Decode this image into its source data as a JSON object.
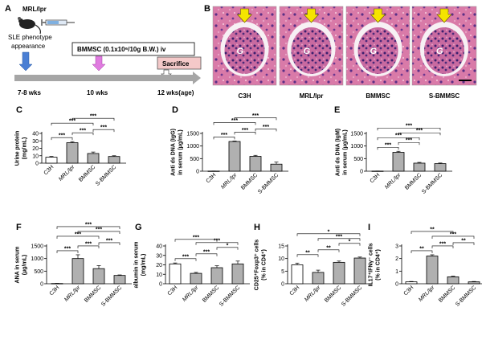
{
  "panel_a": {
    "label": "A",
    "mouse": "MRL/lpr",
    "phenotype": "SLE phenotype appearance",
    "treatment": "BMMSC (0.1x10⁶/10g B.W.) iv",
    "sacrifice": "Sacrifice",
    "t1": "7-8 wks",
    "t2": "10 wks",
    "t3": "12 wks(age)",
    "colors": {
      "arrow1": "#4a7fd4",
      "arrow2": "#e07be0",
      "sacrifice_fill": "#f4c9c9",
      "timeline": "#a6a6a6"
    }
  },
  "panel_b": {
    "label": "B",
    "images": [
      "C3H",
      "MRL/lpr",
      "BMMSC",
      "S-BMMSC"
    ],
    "glom_letter": "G",
    "colors": {
      "stain": "#d77aa8",
      "nuclei": "#4a2a7a",
      "arrow": "#f5e400"
    }
  },
  "sig": {
    "s1": "*",
    "s2": "**",
    "s3": "***"
  },
  "chart_data": [
    {
      "panel": "C",
      "type": "bar",
      "categories": [
        "C3H",
        "MRL/lpr",
        "BMMSC",
        "S-BMMSC"
      ],
      "values": [
        8,
        27.5,
        13,
        9
      ],
      "errors": [
        1,
        1.5,
        2,
        1
      ],
      "ylabel": [
        "Urine protein",
        "(mg/mL)"
      ],
      "ylim": [
        0,
        40
      ],
      "yticks": [
        0,
        10,
        20,
        30,
        40
      ],
      "brackets": [
        {
          "from": 0,
          "to": 1,
          "sig": "***"
        },
        {
          "from": 1,
          "to": 2,
          "sig": "***"
        },
        {
          "from": 0,
          "to": 2,
          "sig": "***"
        },
        {
          "from": 1,
          "to": 3,
          "sig": "***"
        },
        {
          "from": 2,
          "to": 3,
          "sig": "***"
        }
      ]
    },
    {
      "panel": "D",
      "type": "bar",
      "categories": [
        "C3H",
        "MRL/lpr",
        "BMMSC",
        "S-BMMSC"
      ],
      "values": [
        5,
        1180,
        590,
        280
      ],
      "errors": [
        3,
        20,
        40,
        80
      ],
      "ylabel": [
        "Anti ds DNA (IgG)",
        "in serum (µg/mL)"
      ],
      "ylim": [
        0,
        1500
      ],
      "yticks": [
        0,
        500,
        1000,
        1500
      ],
      "brackets": [
        {
          "from": 0,
          "to": 1,
          "sig": "***"
        },
        {
          "from": 1,
          "to": 2,
          "sig": "***"
        },
        {
          "from": 0,
          "to": 2,
          "sig": "***"
        },
        {
          "from": 1,
          "to": 3,
          "sig": "***"
        },
        {
          "from": 2,
          "to": 3,
          "sig": "***"
        }
      ]
    },
    {
      "panel": "E",
      "type": "bar",
      "categories": [
        "C3H",
        "MRL/lpr",
        "BMMSC",
        "S-BMMSC"
      ],
      "values": [
        5,
        750,
        320,
        300
      ],
      "errors": [
        3,
        40,
        30,
        25
      ],
      "ylabel": [
        "Anti ds DNA (IgM)",
        "in serum (µg/mL)"
      ],
      "ylim": [
        0,
        1500
      ],
      "yticks": [
        0,
        500,
        1000,
        1500
      ],
      "brackets": [
        {
          "from": 0,
          "to": 1,
          "sig": "***"
        },
        {
          "from": 1,
          "to": 2,
          "sig": "***"
        },
        {
          "from": 0,
          "to": 2,
          "sig": "***"
        },
        {
          "from": 1,
          "to": 3,
          "sig": "***"
        },
        {
          "from": 0,
          "to": 3,
          "sig": "***"
        }
      ]
    },
    {
      "panel": "F",
      "type": "bar",
      "categories": [
        "C3H",
        "MRL/lpr",
        "BMMSC",
        "S-BMMSC"
      ],
      "values": [
        10,
        1000,
        600,
        330
      ],
      "errors": [
        5,
        150,
        120,
        20
      ],
      "ylabel": [
        "ANA in serum",
        "(µg/mL)"
      ],
      "ylim": [
        0,
        1500
      ],
      "yticks": [
        0,
        500,
        1000,
        1500
      ],
      "brackets": [
        {
          "from": 0,
          "to": 1,
          "sig": "***"
        },
        {
          "from": 1,
          "to": 2,
          "sig": "***"
        },
        {
          "from": 0,
          "to": 2,
          "sig": "***"
        },
        {
          "from": 1,
          "to": 3,
          "sig": "***"
        },
        {
          "from": 2,
          "to": 3,
          "sig": "***"
        },
        {
          "from": 0,
          "to": 3,
          "sig": "***"
        }
      ]
    },
    {
      "panel": "G",
      "type": "bar",
      "categories": [
        "C3H",
        "MRL/lpr",
        "BMMSC",
        "S-BMMSC"
      ],
      "values": [
        21,
        11,
        17,
        21
      ],
      "errors": [
        1,
        1,
        2,
        3
      ],
      "ylabel": [
        "albumin in serum",
        "(mg/mL)"
      ],
      "ylim": [
        0,
        40
      ],
      "yticks": [
        0,
        10,
        20,
        30,
        40
      ],
      "brackets": [
        {
          "from": 0,
          "to": 1,
          "sig": "***"
        },
        {
          "from": 1,
          "to": 2,
          "sig": "***"
        },
        {
          "from": 2,
          "to": 3,
          "sig": "*"
        },
        {
          "from": 1,
          "to": 3,
          "sig": "***"
        },
        {
          "from": 0,
          "to": 2,
          "sig": "***"
        }
      ]
    },
    {
      "panel": "H",
      "type": "bar",
      "categories": [
        "C3H",
        "MRL/lpr",
        "BMMSC",
        "S-BMMSC"
      ],
      "values": [
        7.5,
        4.5,
        8.5,
        10.2
      ],
      "errors": [
        0.7,
        0.9,
        0.5,
        0.4
      ],
      "ylabel": [
        "CD25⁺Foxp3⁺ cells",
        "(% in CD4⁺)"
      ],
      "ylim": [
        0,
        15
      ],
      "yticks": [
        0,
        5,
        10,
        15
      ],
      "brackets": [
        {
          "from": 0,
          "to": 1,
          "sig": "**"
        },
        {
          "from": 1,
          "to": 2,
          "sig": "**"
        },
        {
          "from": 2,
          "to": 3,
          "sig": "*"
        },
        {
          "from": 1,
          "to": 3,
          "sig": "***"
        },
        {
          "from": 0,
          "to": 3,
          "sig": "*"
        }
      ]
    },
    {
      "panel": "I",
      "type": "bar",
      "categories": [
        "C3H",
        "MRL/lpr",
        "BMMSC",
        "S-BMMSC"
      ],
      "values": [
        0.15,
        2.2,
        0.55,
        0.15
      ],
      "errors": [
        0.03,
        0.1,
        0.05,
        0.03
      ],
      "ylabel": [
        "IL17⁺IFNγ⁻ cells",
        "(% in CD4⁺)"
      ],
      "ylim": [
        0,
        3
      ],
      "yticks": [
        0,
        1,
        2,
        3
      ],
      "brackets": [
        {
          "from": 0,
          "to": 1,
          "sig": "**"
        },
        {
          "from": 1,
          "to": 2,
          "sig": "***"
        },
        {
          "from": 2,
          "to": 3,
          "sig": "**"
        },
        {
          "from": 1,
          "to": 3,
          "sig": "***"
        },
        {
          "from": 0,
          "to": 2,
          "sig": "**"
        }
      ]
    }
  ]
}
